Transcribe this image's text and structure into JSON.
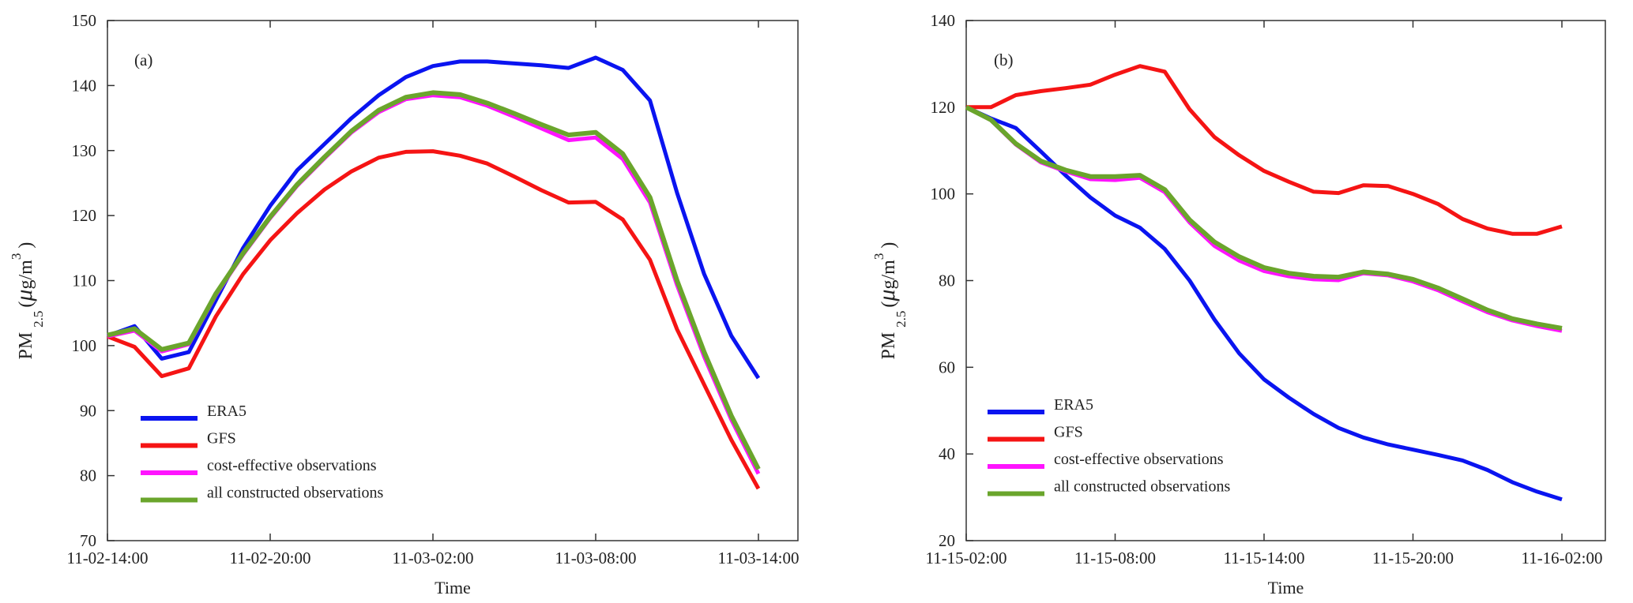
{
  "chart_data": [
    {
      "type": "line",
      "panel_label": "(a)",
      "xlabel": "Time",
      "ylabel": {
        "main": "PM",
        "sub": "2.5",
        "unit_open": "(",
        "mu": "μ",
        "unit": "g/m",
        "sup": "3",
        "unit_close": ")"
      },
      "x_hours": [
        0,
        1,
        2,
        3,
        4,
        5,
        6,
        7,
        8,
        9,
        10,
        11,
        12,
        13,
        14,
        15,
        16,
        17,
        18,
        19,
        20,
        21,
        22,
        23,
        24
      ],
      "xticks": [
        {
          "h": 0,
          "label": "11-02-14:00"
        },
        {
          "h": 6,
          "label": "11-02-20:00"
        },
        {
          "h": 12,
          "label": "11-03-02:00"
        },
        {
          "h": 18,
          "label": "11-03-08:00"
        },
        {
          "h": 24,
          "label": "11-03-14:00"
        }
      ],
      "ylim": [
        70,
        150
      ],
      "yticks": [
        70,
        80,
        90,
        100,
        110,
        120,
        130,
        140,
        150
      ],
      "legend_placement": "bottom-left",
      "series": [
        {
          "name": "ERA5",
          "color": "#0a14f0",
          "values": [
            101.5,
            103,
            98,
            99,
            107,
            115,
            121.5,
            127,
            131,
            135,
            138.5,
            141.3,
            143,
            143.7,
            143.7,
            143.4,
            143.1,
            142.7,
            144.3,
            142.4,
            137.7,
            123.5,
            111,
            101.5,
            95
          ]
        },
        {
          "name": "GFS",
          "color": "#f51414",
          "values": [
            101.4,
            99.8,
            95.3,
            96.5,
            104.5,
            111,
            116.2,
            120.4,
            124,
            126.8,
            128.9,
            129.8,
            129.9,
            129.2,
            128,
            126,
            123.9,
            122,
            122.1,
            119.4,
            113.2,
            102.5,
            94,
            85.5,
            78
          ]
        },
        {
          "name": "cost-effective observations",
          "color": "#ff14ff",
          "values": [
            101.4,
            102.3,
            99.1,
            100.2,
            107.8,
            114,
            119.6,
            124.6,
            128.8,
            132.8,
            135.9,
            137.9,
            138.5,
            138.2,
            136.9,
            135.2,
            133.4,
            131.6,
            132,
            128.7,
            122,
            109.3,
            98.3,
            88.6,
            80.3
          ]
        },
        {
          "name": "all constructed observations",
          "color": "#6aa52c",
          "values": [
            101.6,
            102.6,
            99.4,
            100.4,
            108,
            114.2,
            119.8,
            124.8,
            129,
            133,
            136.2,
            138.2,
            138.9,
            138.6,
            137.3,
            135.7,
            134,
            132.4,
            132.8,
            129.5,
            122.8,
            110,
            99,
            89.2,
            81
          ]
        }
      ]
    },
    {
      "type": "line",
      "panel_label": "(b)",
      "xlabel": "Time",
      "ylabel": {
        "main": "PM",
        "sub": "2.5",
        "unit_open": "(",
        "mu": "μ",
        "unit": "g/m",
        "sup": "3",
        "unit_close": ")"
      },
      "x_hours": [
        0,
        1,
        2,
        3,
        4,
        5,
        6,
        7,
        8,
        9,
        10,
        11,
        12,
        13,
        14,
        15,
        16,
        17,
        18,
        19,
        20,
        21,
        22,
        23,
        24
      ],
      "xticks": [
        {
          "h": 0,
          "label": "11-15-02:00"
        },
        {
          "h": 6,
          "label": "11-15-08:00"
        },
        {
          "h": 12,
          "label": "11-15-14:00"
        },
        {
          "h": 18,
          "label": "11-15-20:00"
        },
        {
          "h": 24,
          "label": "11-16-02:00"
        }
      ],
      "ylim": [
        20,
        140
      ],
      "yticks": [
        20,
        40,
        60,
        80,
        100,
        120,
        140
      ],
      "legend_placement": "bottom-left",
      "series": [
        {
          "name": "ERA5",
          "color": "#0a14f0",
          "values": [
            120,
            117.4,
            115.2,
            109.8,
            104.3,
            99.2,
            95,
            92.2,
            87.3,
            80,
            71,
            63.2,
            57.2,
            53,
            49.2,
            46,
            43.8,
            42.2,
            41,
            39.8,
            38.5,
            36.3,
            33.5,
            31.3,
            29.5
          ]
        },
        {
          "name": "GFS",
          "color": "#f51414",
          "values": [
            120,
            120,
            122.8,
            123.7,
            124.4,
            125.2,
            127.5,
            129.5,
            128.2,
            119.5,
            113.1,
            108.9,
            105.3,
            102.8,
            100.5,
            100.2,
            102,
            101.8,
            100,
            97.7,
            94.2,
            92,
            90.8,
            90.8,
            92.5
          ]
        },
        {
          "name": "cost-effective observations",
          "color": "#ff14ff",
          "values": [
            120,
            117,
            111.4,
            107.3,
            105.2,
            103.4,
            103.2,
            103.7,
            100.4,
            93.4,
            88,
            84.6,
            82.2,
            81,
            80.3,
            80.1,
            81.7,
            81.2,
            79.8,
            77.8,
            75.2,
            72.7,
            70.8,
            69.5,
            68.4
          ]
        },
        {
          "name": "all constructed observations",
          "color": "#6aa52c",
          "values": [
            120,
            117.1,
            111.6,
            107.6,
            105.5,
            104,
            104,
            104.3,
            101,
            94,
            88.9,
            85.5,
            83,
            81.7,
            81,
            80.8,
            82,
            81.5,
            80.3,
            78.3,
            75.8,
            73.2,
            71.2,
            70,
            69
          ]
        }
      ]
    }
  ]
}
